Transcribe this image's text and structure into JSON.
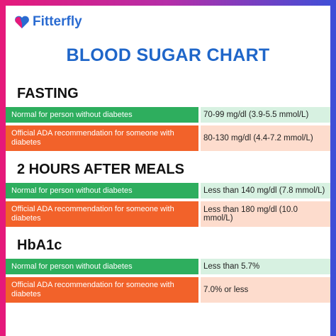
{
  "header": {
    "brand": "Fitterfly"
  },
  "title": "BLOOD SUGAR CHART",
  "sections": [
    {
      "heading": "FASTING",
      "rows": [
        {
          "label": "Normal for person without diabetes",
          "value": "70-99 mg/dl (3.9-5.5 mmol/L)"
        },
        {
          "label": "Official ADA recommendation for someone with diabetes",
          "value": "80-130 mg/dl (4.4-7.2 mmol/L)"
        }
      ]
    },
    {
      "heading": "2 HOURS AFTER MEALS",
      "rows": [
        {
          "label": "Normal for person without diabetes",
          "value": "Less than 140 mg/dl (7.8 mmol/L)"
        },
        {
          "label": "Official ADA recommendation for someone with diabetes",
          "value": "Less than 180 mg/dl (10.0 mmol/L)"
        }
      ]
    },
    {
      "heading": "HbA1c",
      "rows": [
        {
          "label": "Normal for person without diabetes",
          "value": "Less than 5.7%"
        },
        {
          "label": "Official ADA recommendation for someone with diabetes",
          "value": "7.0% or less"
        }
      ]
    }
  ]
}
